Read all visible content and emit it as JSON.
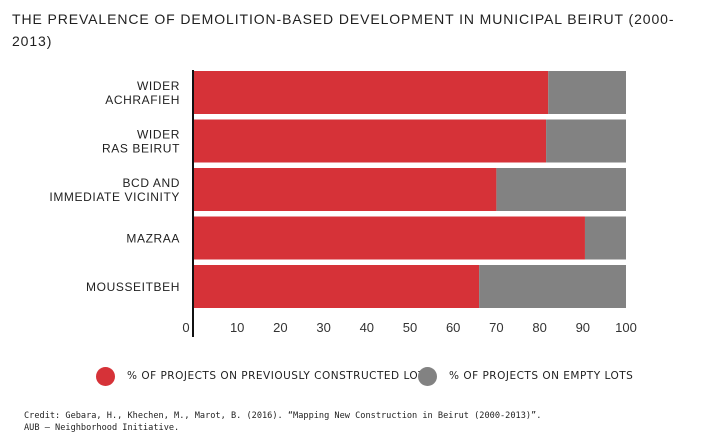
{
  "chart_data": {
    "type": "bar",
    "orientation": "horizontal",
    "stacked": true,
    "title": "THE PREVALENCE OF DEMOLITION-BASED DEVELOPMENT IN MUNICIPAL BEIRUT (2000-2013)",
    "categories": [
      [
        "WIDER",
        "ACHRAFIEH"
      ],
      [
        "WIDER",
        "RAS BEIRUT"
      ],
      [
        "BCD AND",
        "IMMEDIATE VICINITY"
      ],
      [
        "MAZRAA"
      ],
      [
        "MOUSSEITBEH"
      ]
    ],
    "series": [
      {
        "name": "% OF PROJECTS ON PREVIOUSLY CONSTRUCTED LOTS",
        "color": "#d63238",
        "values": [
          82,
          81.5,
          70,
          90.5,
          66
        ]
      },
      {
        "name": "% OF PROJECTS ON EMPTY LOTS",
        "color": "#828282",
        "values": [
          18,
          18.5,
          30,
          9.5,
          34
        ]
      }
    ],
    "xlim": [
      0,
      100
    ],
    "xticks": [
      "0",
      "10",
      "20",
      "30",
      "40",
      "50",
      "60",
      "70",
      "80",
      "90",
      "100"
    ],
    "grid": false,
    "legend_position": "bottom"
  },
  "credit": {
    "line1": "Credit: Gebara, H., Khechen, M., Marot, B. (2016). “Mapping New Construction in Beirut (2000-2013)”.",
    "line2": "AUB – Neighborhood Initiative."
  }
}
